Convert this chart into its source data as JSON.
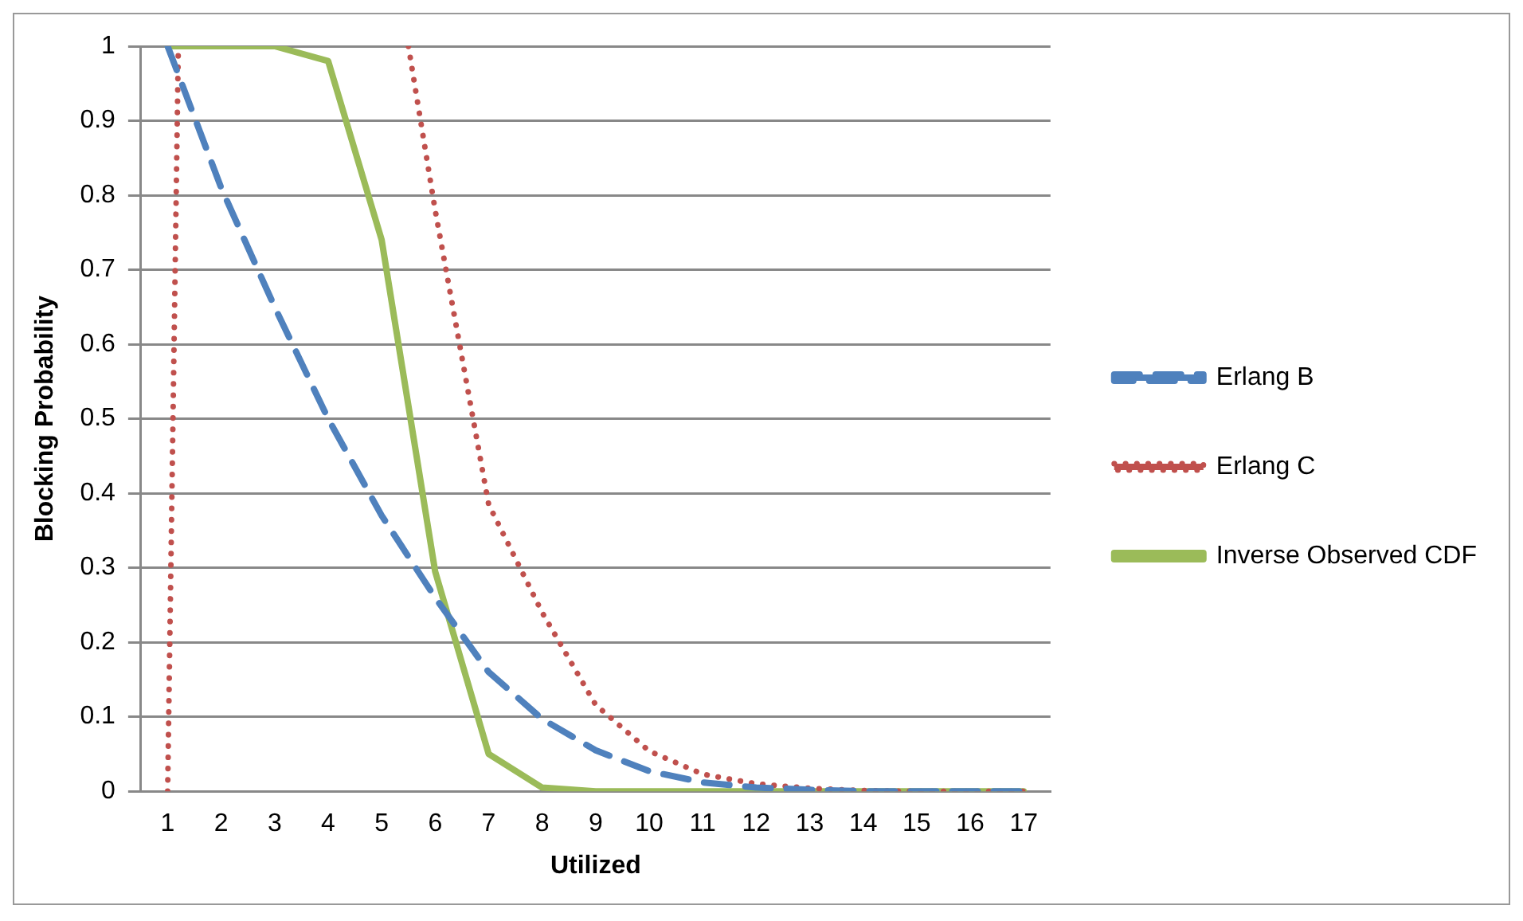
{
  "chart_data": {
    "type": "line",
    "xlabel": "Utilized",
    "ylabel": "Blocking Probability",
    "x": [
      1,
      2,
      3,
      4,
      5,
      6,
      7,
      8,
      9,
      10,
      11,
      12,
      13,
      14,
      15,
      16,
      17
    ],
    "xlim": [
      0.5,
      17.5
    ],
    "xticks": [
      1,
      2,
      3,
      4,
      5,
      6,
      7,
      8,
      9,
      10,
      11,
      12,
      13,
      14,
      15,
      16,
      17
    ],
    "ylim": [
      0,
      1
    ],
    "yticks": [
      0,
      0.1,
      0.2,
      0.3,
      0.4,
      0.5,
      0.6,
      0.7,
      0.8,
      0.9,
      1
    ],
    "grid": "y",
    "legend": "right",
    "marker": "none",
    "series": [
      {
        "name": "Erlang B",
        "color": "#4f81bd",
        "line_style": "dashed",
        "values": [
          1,
          0.81,
          0.65,
          0.5,
          0.37,
          0.26,
          0.16,
          0.097,
          0.055,
          0.027,
          0.012,
          0.005,
          0.002,
          0,
          0,
          0,
          0
        ]
      },
      {
        "name": "Erlang C",
        "color": "#c0504d",
        "line_style": "dotted",
        "x": [
          1,
          1.2,
          3,
          5.5,
          6,
          7,
          8,
          9,
          10,
          11,
          12,
          13,
          14,
          15,
          16,
          17
        ],
        "values": [
          0,
          1,
          null,
          1,
          0.78,
          0.385,
          0.24,
          0.116,
          0.054,
          0.023,
          0.01,
          0.004,
          0.001,
          0,
          0,
          0
        ]
      },
      {
        "name": "Inverse Observed CDF",
        "color": "#9bbb59",
        "line_style": "solid",
        "values": [
          1,
          1,
          1,
          0.98,
          0.74,
          0.295,
          0.05,
          0.005,
          0,
          0,
          0,
          0,
          0,
          0,
          0,
          0,
          0
        ]
      }
    ]
  }
}
